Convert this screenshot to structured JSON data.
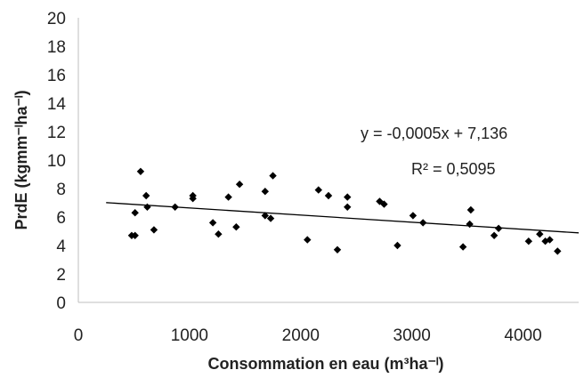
{
  "chart_data": {
    "type": "scatter",
    "xlabel": "Consommation en eau (m³ha⁻ˡ)",
    "ylabel": "PrdE (kgmm⁻ˡha⁻ˡ)",
    "xlim": [
      0,
      4500
    ],
    "ylim": [
      0,
      20
    ],
    "xticks": [
      0,
      1000,
      2000,
      3000,
      4000
    ],
    "yticks": [
      0,
      2,
      4,
      6,
      8,
      10,
      12,
      14,
      16,
      18,
      20
    ],
    "xtick_labels": [
      "0",
      "1000",
      "2000",
      "3000",
      "4000"
    ],
    "ytick_labels": [
      "0",
      "2",
      "4",
      "6",
      "8",
      "10",
      "12",
      "14",
      "16",
      "18",
      "20"
    ],
    "grid": false,
    "marker": "diamond",
    "marker_color": "#000000",
    "points": [
      {
        "x": 480,
        "y": 4.7
      },
      {
        "x": 510,
        "y": 4.7
      },
      {
        "x": 510,
        "y": 6.3
      },
      {
        "x": 560,
        "y": 9.2
      },
      {
        "x": 610,
        "y": 7.5
      },
      {
        "x": 620,
        "y": 6.7
      },
      {
        "x": 680,
        "y": 5.1
      },
      {
        "x": 870,
        "y": 6.7
      },
      {
        "x": 1030,
        "y": 7.5
      },
      {
        "x": 1030,
        "y": 7.3
      },
      {
        "x": 1210,
        "y": 5.6
      },
      {
        "x": 1260,
        "y": 4.8
      },
      {
        "x": 1350,
        "y": 7.4
      },
      {
        "x": 1420,
        "y": 5.3
      },
      {
        "x": 1450,
        "y": 8.3
      },
      {
        "x": 1680,
        "y": 7.8
      },
      {
        "x": 1680,
        "y": 6.1
      },
      {
        "x": 1730,
        "y": 5.9
      },
      {
        "x": 1750,
        "y": 8.9
      },
      {
        "x": 2060,
        "y": 4.4
      },
      {
        "x": 2160,
        "y": 7.9
      },
      {
        "x": 2250,
        "y": 7.5
      },
      {
        "x": 2330,
        "y": 3.7
      },
      {
        "x": 2420,
        "y": 7.4
      },
      {
        "x": 2420,
        "y": 6.7
      },
      {
        "x": 2710,
        "y": 7.1
      },
      {
        "x": 2750,
        "y": 6.9
      },
      {
        "x": 2870,
        "y": 4.0
      },
      {
        "x": 3010,
        "y": 6.1
      },
      {
        "x": 3100,
        "y": 5.6
      },
      {
        "x": 3460,
        "y": 3.9
      },
      {
        "x": 3520,
        "y": 5.5
      },
      {
        "x": 3530,
        "y": 6.5
      },
      {
        "x": 3740,
        "y": 4.7
      },
      {
        "x": 3780,
        "y": 5.2
      },
      {
        "x": 4050,
        "y": 4.3
      },
      {
        "x": 4150,
        "y": 4.8
      },
      {
        "x": 4200,
        "y": 4.3
      },
      {
        "x": 4240,
        "y": 4.4
      },
      {
        "x": 4310,
        "y": 3.6
      }
    ],
    "trendline": {
      "slope": -0.0005,
      "intercept": 7.136,
      "x_range": [
        250,
        4500
      ],
      "equation": "y = -0,0005x + 7,136",
      "r2": "R² = 0,5095"
    }
  }
}
